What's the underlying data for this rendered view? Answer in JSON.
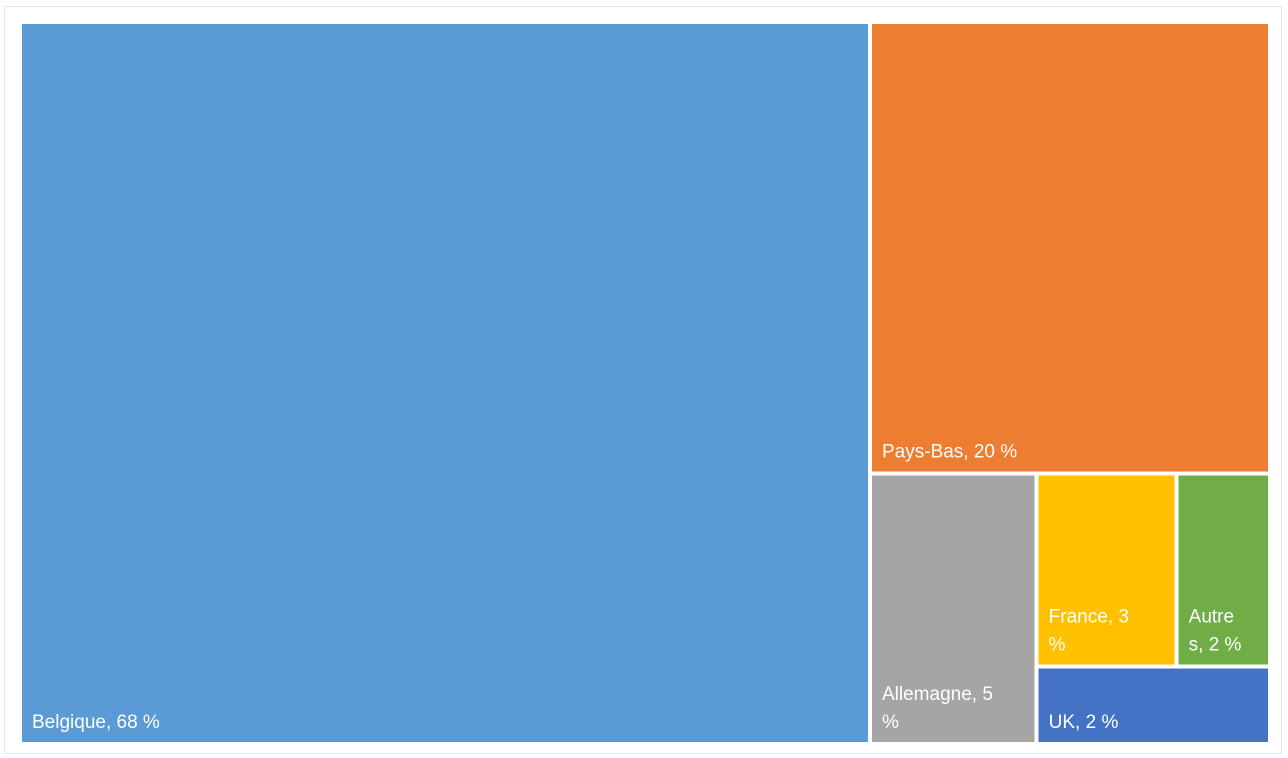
{
  "chart_data": {
    "type": "treemap",
    "items": [
      {
        "name": "Belgique",
        "value": 68,
        "label_lines": [
          "Belgique, 68 %"
        ],
        "color": "#5B9BD5"
      },
      {
        "name": "Pays-Bas",
        "value": 20,
        "label_lines": [
          "Pays-Bas, 20 %"
        ],
        "color": "#ED7D31"
      },
      {
        "name": "Allemagne",
        "value": 5,
        "label_lines": [
          "Allemagne, 5",
          "%"
        ],
        "color": "#A5A5A5"
      },
      {
        "name": "France",
        "value": 3,
        "label_lines": [
          "France, 3",
          "%"
        ],
        "color": "#FFC000"
      },
      {
        "name": "Autres",
        "value": 2,
        "label_lines": [
          "Autre",
          "s, 2 %"
        ],
        "color": "#70AD47"
      },
      {
        "name": "UK",
        "value": 2,
        "label_lines": [
          "UK, 2 %"
        ],
        "color": "#4472C4"
      }
    ]
  }
}
